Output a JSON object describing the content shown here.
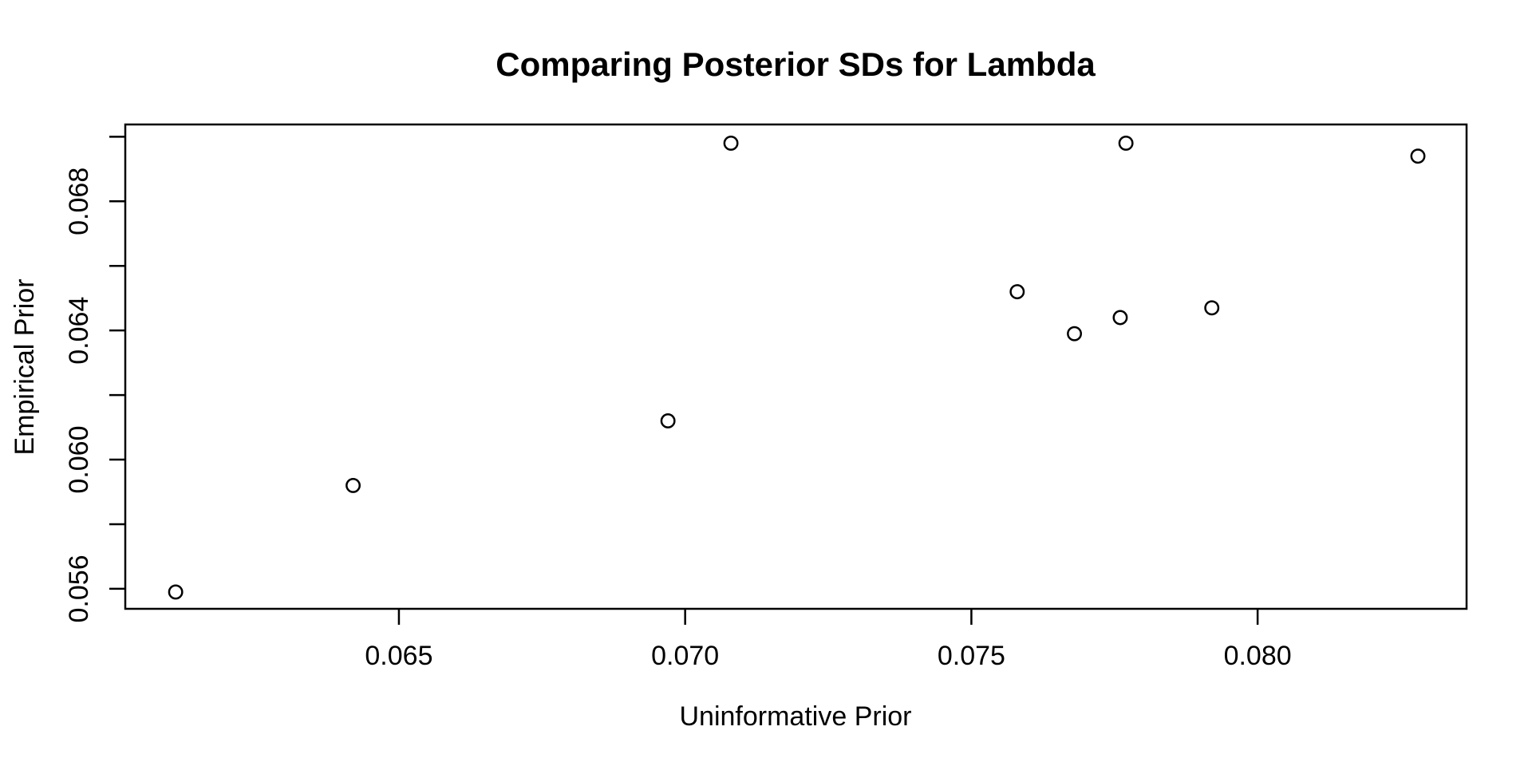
{
  "chart_data": {
    "type": "scatter",
    "title": "Comparing Posterior SDs for Lambda",
    "xlabel": "Uninformative Prior",
    "ylabel": "Empirical Prior",
    "xlim": [
      0.06022,
      0.08365
    ],
    "ylim": [
      0.05538,
      0.07038
    ],
    "x_ticks": [
      {
        "value": 0.065,
        "label": "0.065"
      },
      {
        "value": 0.07,
        "label": "0.070"
      },
      {
        "value": 0.075,
        "label": "0.075"
      },
      {
        "value": 0.08,
        "label": "0.080"
      }
    ],
    "y_ticks": [
      {
        "value": 0.056,
        "label": "0.056"
      },
      {
        "value": 0.058,
        "label": ""
      },
      {
        "value": 0.06,
        "label": "0.060"
      },
      {
        "value": 0.062,
        "label": ""
      },
      {
        "value": 0.064,
        "label": "0.064"
      },
      {
        "value": 0.066,
        "label": ""
      },
      {
        "value": 0.068,
        "label": "0.068"
      },
      {
        "value": 0.07,
        "label": ""
      }
    ],
    "points": [
      {
        "x": 0.0611,
        "y": 0.0559
      },
      {
        "x": 0.0642,
        "y": 0.0592
      },
      {
        "x": 0.0697,
        "y": 0.0612
      },
      {
        "x": 0.0708,
        "y": 0.0698
      },
      {
        "x": 0.0758,
        "y": 0.0652
      },
      {
        "x": 0.0768,
        "y": 0.0639
      },
      {
        "x": 0.0776,
        "y": 0.0644
      },
      {
        "x": 0.0777,
        "y": 0.0698
      },
      {
        "x": 0.0792,
        "y": 0.0647
      },
      {
        "x": 0.0828,
        "y": 0.0694
      }
    ],
    "marker": "open-circle",
    "grid": "off",
    "legend": "none",
    "colors": {
      "foreground": "#000000",
      "background": "#ffffff"
    }
  }
}
